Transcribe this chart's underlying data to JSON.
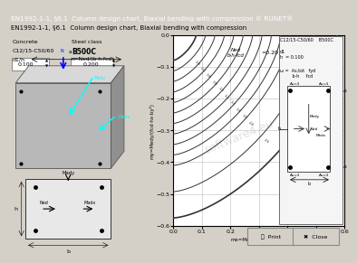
{
  "title_bar": "EN1992-1-1, §6.1  Column design chart, Biaxial bending with compression © RUNET®",
  "subtitle": "EN1992-1-1, §6.1  Column design chart, Biaxial bending with compression",
  "bg_color": "#d4d0c8",
  "chart_bg": "#ffffff",
  "title_bar_bg": "#0a246a",
  "title_bar_fg": "#ffffff",
  "concrete": "C12/15-C50/60",
  "steel": "B500C",
  "d1h": "0.100",
  "n_val": "0.200",
  "n_label": "n=Ned/(b·h·fcd)",
  "ned_label": "Ned\nb·h·fcd",
  "n_annotation": "=0.20",
  "xlabel": "mx=Medx/(fcd·hy·bx²)",
  "ylabel": "my=Medy/(fcd·hx·by²)",
  "xlim": [
    0.0,
    0.6
  ],
  "ylim": [
    -0.6,
    0.0
  ],
  "xticks": [
    0.0,
    0.1,
    0.2,
    0.3,
    0.4,
    0.5,
    0.6
  ],
  "yticks": [
    0.0,
    -0.1,
    -0.2,
    -0.3,
    -0.4,
    -0.5,
    -0.6
  ],
  "grid_color": "#bbbbbb",
  "curve_color": "#333333",
  "watermark": "software4.eu",
  "omega_values": [
    0.0,
    0.2,
    0.4,
    0.6,
    0.8,
    1.0,
    1.2,
    1.4,
    1.6,
    1.8,
    2.0,
    2.5,
    3.0
  ],
  "print_btn": "🖨  Print",
  "close_btn": "Close"
}
